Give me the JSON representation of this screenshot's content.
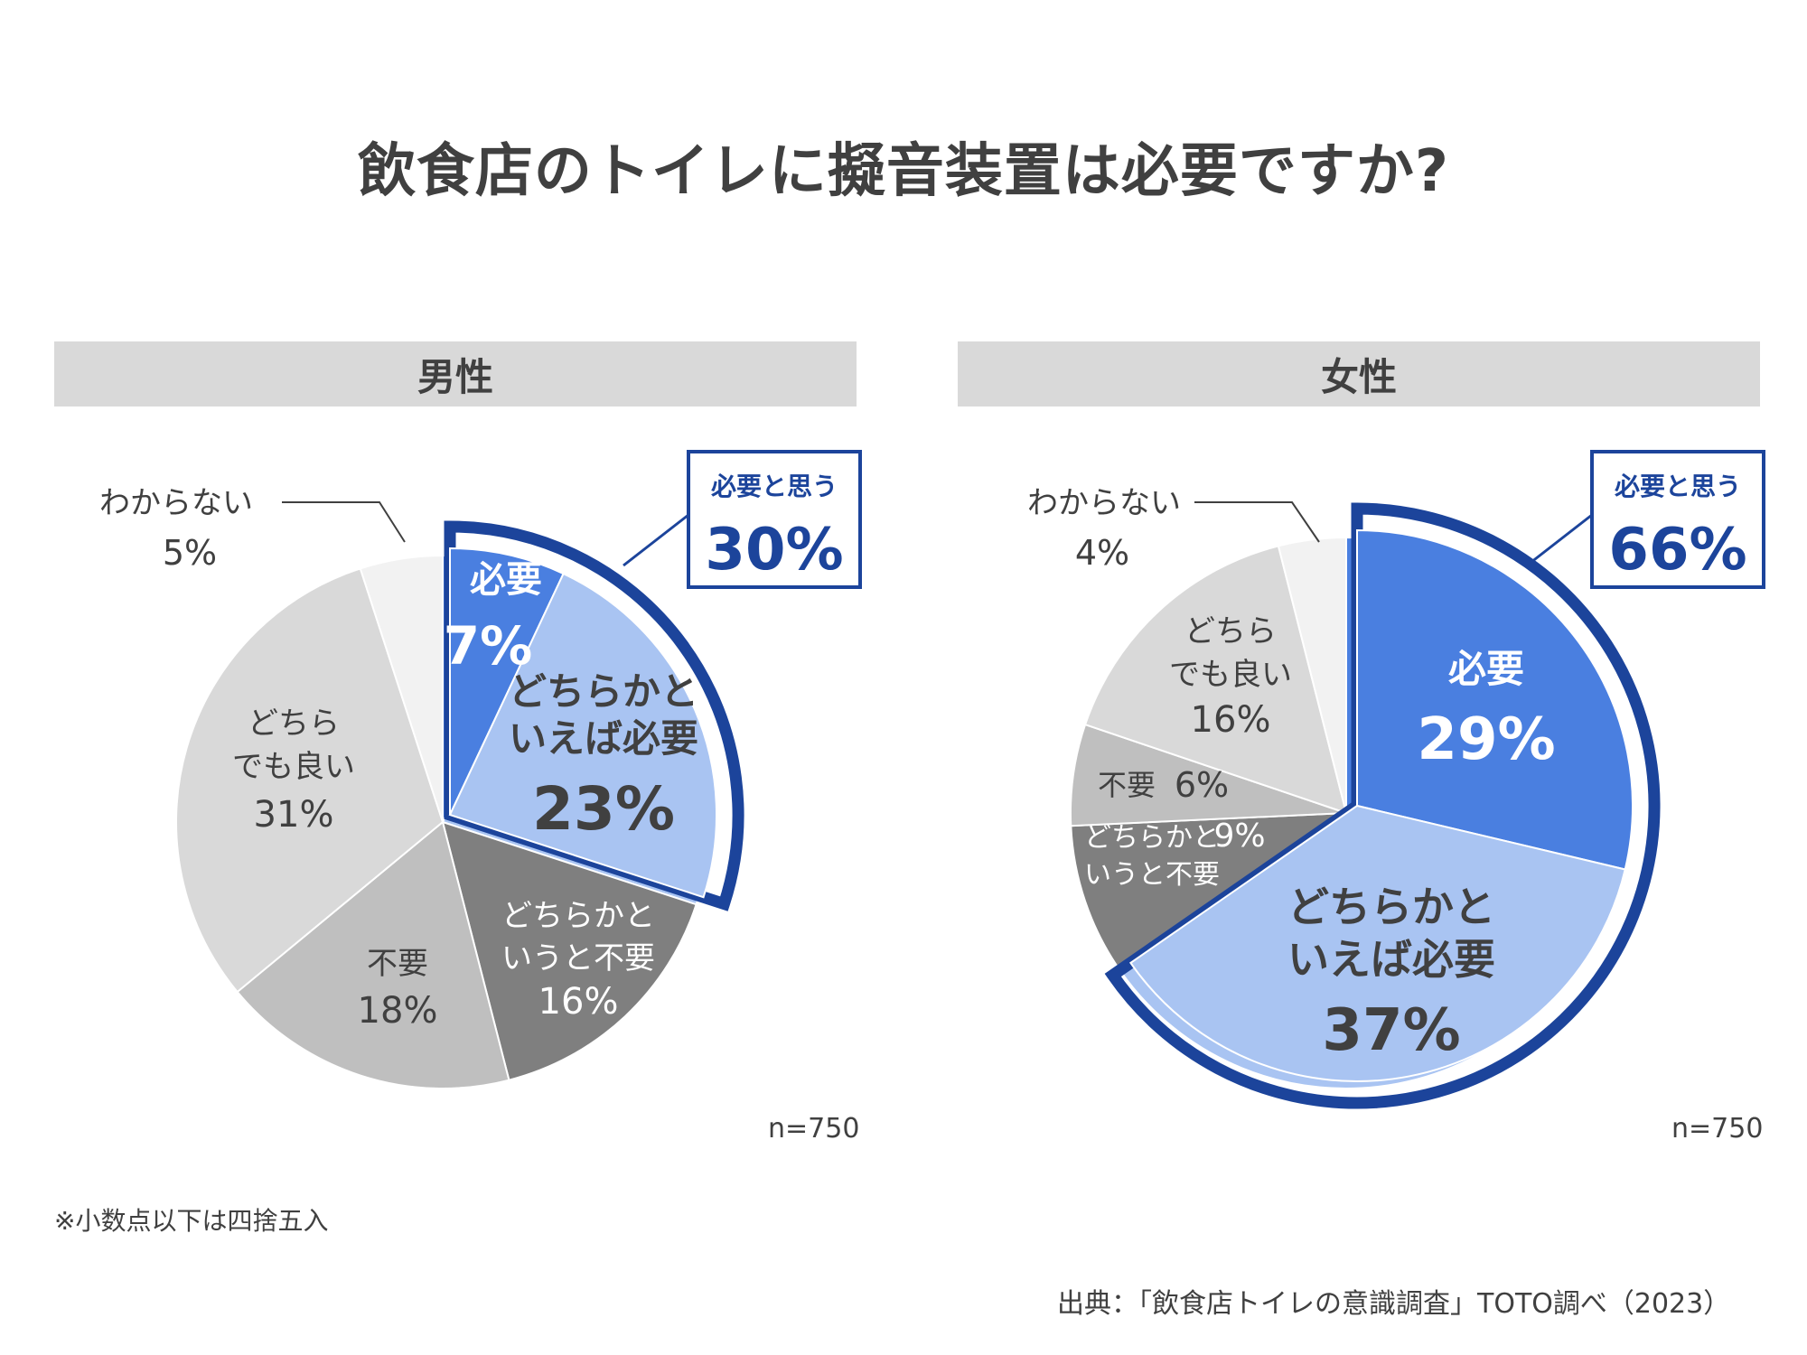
{
  "title": "飲食店のトイレに擬音装置は必要ですか?",
  "footnote": "※小数点以下は四捨五入",
  "source": "出典：「飲食店トイレの意識調査」TOTO調べ（2023）",
  "colors": {
    "need": "#4a7fe0",
    "rather_need": "#a9c4f2",
    "rather_not": "#7f7f7f",
    "not_need": "#bfbfbf",
    "either": "#d9d9d9",
    "unknown": "#f2f2f2",
    "highlight": "#1c449b"
  },
  "chart_data": [
    {
      "type": "pie",
      "title": "男性",
      "sample_size": "n=750",
      "highlight": {
        "label": "必要と思う",
        "value": 30
      },
      "slices": [
        {
          "label": "必要",
          "value": 7
        },
        {
          "label": "どちらかといえば必要",
          "value": 23
        },
        {
          "label": "どちらかといえば不要",
          "value": 16
        },
        {
          "label": "不要",
          "value": 18
        },
        {
          "label": "どちらでも良い",
          "value": 31
        },
        {
          "label": "わからない",
          "value": 5
        }
      ]
    },
    {
      "type": "pie",
      "title": "女性",
      "sample_size": "n=750",
      "highlight": {
        "label": "必要と思う",
        "value": 66
      },
      "slices": [
        {
          "label": "必要",
          "value": 29
        },
        {
          "label": "どちらかといえば必要",
          "value": 37
        },
        {
          "label": "どちらかといえば不要",
          "value": 9
        },
        {
          "label": "不要",
          "value": 6
        },
        {
          "label": "どちらでも良い",
          "value": 16
        },
        {
          "label": "わからない",
          "value": 4
        }
      ]
    }
  ],
  "labels": {
    "male": {
      "need": [
        "必要",
        "7%"
      ],
      "rather_need": [
        "どちらかと",
        "いえば必要",
        "23%"
      ],
      "rather_not": [
        "どちらかと",
        "いうと不要",
        "16%"
      ],
      "not_need": [
        "不要",
        "18%"
      ],
      "either": [
        "どちら",
        "でも良い",
        "31%"
      ],
      "unknown": [
        "わからない",
        "5%"
      ],
      "callout": [
        "必要と思う",
        "30%"
      ]
    },
    "female": {
      "need": [
        "必要",
        "29%"
      ],
      "rather_need": [
        "どちらかと",
        "いえば必要",
        "37%"
      ],
      "rather_not": [
        "どちらかと",
        "9%",
        "いうと不要"
      ],
      "not_need": [
        "不要",
        "6%"
      ],
      "either": [
        "どちら",
        "でも良い",
        "16%"
      ],
      "unknown": [
        "わからない",
        "4%"
      ],
      "callout": [
        "必要と思う",
        "66%"
      ]
    }
  }
}
